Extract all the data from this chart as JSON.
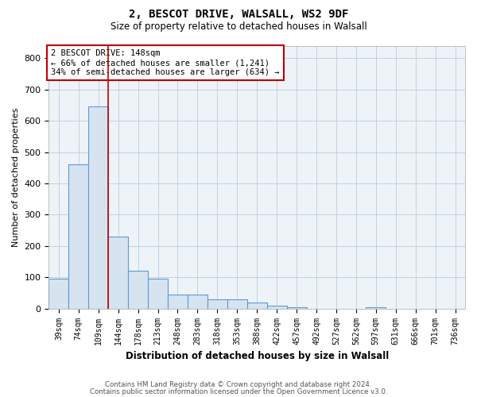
{
  "title1": "2, BESCOT DRIVE, WALSALL, WS2 9DF",
  "title2": "Size of property relative to detached houses in Walsall",
  "xlabel": "Distribution of detached houses by size in Walsall",
  "ylabel": "Number of detached properties",
  "bar_labels": [
    "39sqm",
    "74sqm",
    "109sqm",
    "144sqm",
    "178sqm",
    "213sqm",
    "248sqm",
    "283sqm",
    "318sqm",
    "353sqm",
    "388sqm",
    "422sqm",
    "457sqm",
    "492sqm",
    "527sqm",
    "562sqm",
    "597sqm",
    "631sqm",
    "666sqm",
    "701sqm",
    "736sqm"
  ],
  "bar_values": [
    95,
    460,
    645,
    230,
    120,
    95,
    45,
    45,
    30,
    30,
    20,
    10,
    5,
    0,
    0,
    0,
    5,
    0,
    0,
    0,
    0
  ],
  "bar_color": "#d6e4f0",
  "bar_edge_color": "#5b9bd5",
  "property_line_color": "#c00000",
  "property_line_idx": 2.5,
  "annotation_text": "2 BESCOT DRIVE: 148sqm\n← 66% of detached houses are smaller (1,241)\n34% of semi-detached houses are larger (634) →",
  "annotation_box_color": "#c00000",
  "ylim": [
    0,
    840
  ],
  "yticks": [
    0,
    100,
    200,
    300,
    400,
    500,
    600,
    700,
    800
  ],
  "footer1": "Contains HM Land Registry data © Crown copyright and database right 2024.",
  "footer2": "Contains public sector information licensed under the Open Government Licence v3.0.",
  "bg_color": "#eef3f8",
  "grid_color": "#b8cfe0"
}
